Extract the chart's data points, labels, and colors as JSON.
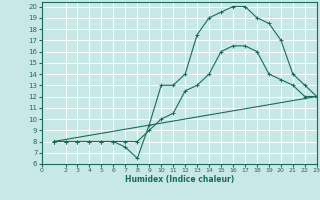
{
  "xlabel": "Humidex (Indice chaleur)",
  "bg_color": "#c8e8e8",
  "grid_color": "#ffffff",
  "line_color": "#1a6b5a",
  "xlim": [
    0,
    23
  ],
  "ylim": [
    6,
    20.4
  ],
  "xticks": [
    0,
    2,
    3,
    4,
    5,
    6,
    7,
    8,
    9,
    10,
    11,
    12,
    13,
    14,
    15,
    16,
    17,
    18,
    19,
    20,
    21,
    22,
    23
  ],
  "yticks": [
    6,
    7,
    8,
    9,
    10,
    11,
    12,
    13,
    14,
    15,
    16,
    17,
    18,
    19,
    20
  ],
  "line1_x": [
    1,
    2,
    3,
    4,
    5,
    6,
    7,
    8,
    9,
    10,
    11,
    12,
    13,
    14,
    15,
    16,
    17,
    18,
    19,
    20,
    21,
    22,
    23
  ],
  "line1_y": [
    8,
    8,
    8,
    8,
    8,
    8,
    7.5,
    6.5,
    9.5,
    13,
    13,
    14,
    17.5,
    19,
    19.5,
    20,
    20,
    19,
    18.5,
    17,
    14,
    13,
    12
  ],
  "line2_x": [
    1,
    2,
    3,
    4,
    5,
    6,
    7,
    8,
    9,
    10,
    11,
    12,
    13,
    14,
    15,
    16,
    17,
    18,
    19,
    20,
    21,
    22,
    23
  ],
  "line2_y": [
    8,
    8,
    8,
    8,
    8,
    8,
    8,
    8,
    9,
    10,
    10.5,
    12.5,
    13,
    14,
    16,
    16.5,
    16.5,
    16,
    14,
    13.5,
    13,
    12,
    12
  ],
  "line3_x": [
    1,
    23
  ],
  "line3_y": [
    8,
    12
  ]
}
